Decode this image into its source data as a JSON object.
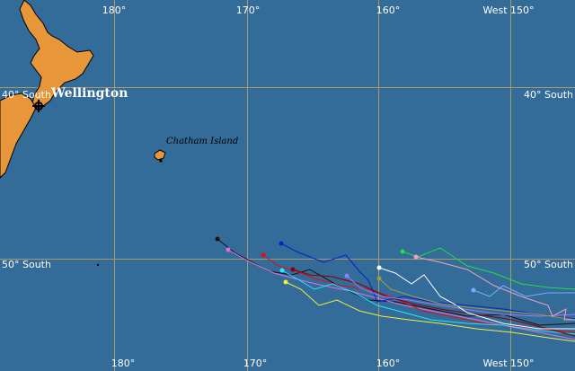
{
  "map": {
    "colors": {
      "ocean": "#336b99",
      "land": "#e8963a",
      "coast": "#000000",
      "grid": "#a89a6a",
      "label": "#ffffff"
    },
    "longitude_labels": {
      "lon_180": "180°",
      "lon_170": "170°",
      "lon_160": "160°",
      "lon_150": "West 150°"
    },
    "latitude_labels": {
      "lat_40": "40° South",
      "lat_50": "50° South"
    },
    "places": {
      "wellington": "Wellington",
      "chatham": "Chatham Island"
    },
    "tracks": [
      {
        "color": "#111111",
        "name": "black"
      },
      {
        "color": "#e070e0",
        "name": "pink"
      },
      {
        "color": "#dd1111",
        "name": "red"
      },
      {
        "color": "#0a20c8",
        "name": "navy"
      },
      {
        "color": "#22e8ff",
        "name": "cyan"
      },
      {
        "color": "#f0f040",
        "name": "yellow"
      },
      {
        "color": "#880000",
        "name": "maroon"
      },
      {
        "color": "#9a7aff",
        "name": "lavender"
      },
      {
        "color": "#ffffff",
        "name": "white"
      },
      {
        "color": "#9aa040",
        "name": "olive"
      },
      {
        "color": "#20e040",
        "name": "green"
      },
      {
        "color": "#f0a0c0",
        "name": "rose"
      },
      {
        "color": "#70b0ff",
        "name": "lightblue"
      }
    ]
  }
}
